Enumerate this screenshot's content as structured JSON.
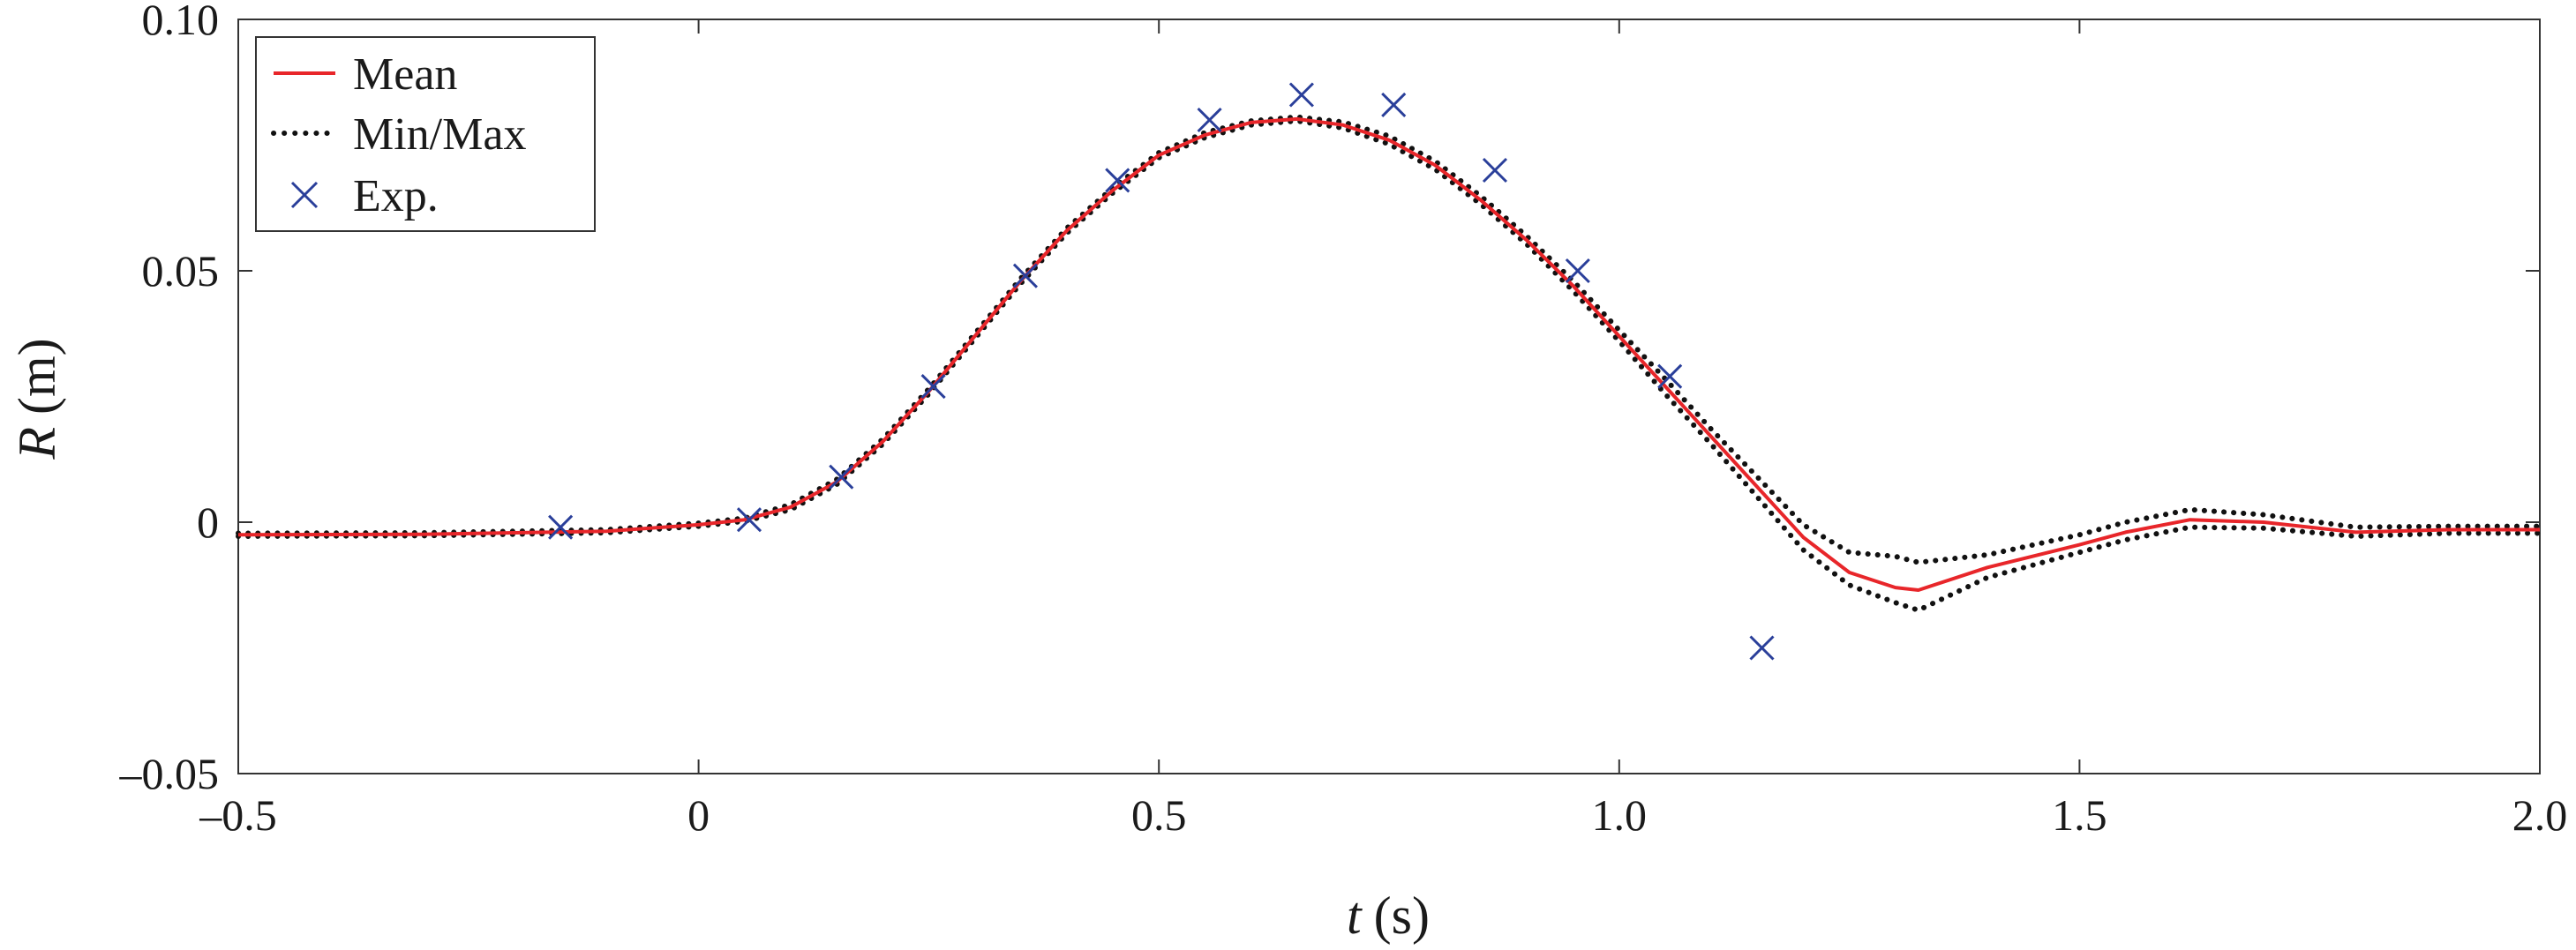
{
  "chart_data": {
    "type": "line",
    "title": "",
    "xlabel_var": "t",
    "xlabel_unit": "(s)",
    "ylabel_var": "R",
    "ylabel_unit": "(m)",
    "xlim": [
      -0.5,
      2.0
    ],
    "ylim": [
      -0.05,
      0.1
    ],
    "xticks": [
      -0.5,
      0,
      0.5,
      1.0,
      1.5,
      2.0
    ],
    "xtick_labels": [
      "–0.5",
      "0",
      "0.5",
      "1.0",
      "1.5",
      "2.0"
    ],
    "yticks": [
      -0.05,
      0,
      0.05,
      0.1
    ],
    "ytick_labels": [
      "–0.05",
      "0",
      "0.05",
      "0.10"
    ],
    "grid": false,
    "legend_position": "top-left",
    "series": [
      {
        "name": "Mean",
        "style": "solid",
        "color": "#e8262a",
        "points": [
          [
            -0.5,
            -0.0025
          ],
          [
            -0.3,
            -0.0024
          ],
          [
            -0.1,
            -0.0018
          ],
          [
            0.0,
            -0.0005
          ],
          [
            0.05,
            0.0005
          ],
          [
            0.1,
            0.003
          ],
          [
            0.15,
            0.008
          ],
          [
            0.2,
            0.016
          ],
          [
            0.25,
            0.026
          ],
          [
            0.3,
            0.037
          ],
          [
            0.35,
            0.048
          ],
          [
            0.4,
            0.058
          ],
          [
            0.45,
            0.066
          ],
          [
            0.5,
            0.073
          ],
          [
            0.55,
            0.077
          ],
          [
            0.6,
            0.0795
          ],
          [
            0.65,
            0.0802
          ],
          [
            0.7,
            0.079
          ],
          [
            0.75,
            0.076
          ],
          [
            0.8,
            0.071
          ],
          [
            0.85,
            0.064
          ],
          [
            0.9,
            0.056
          ],
          [
            0.95,
            0.047
          ],
          [
            1.0,
            0.037
          ],
          [
            1.05,
            0.027
          ],
          [
            1.1,
            0.017
          ],
          [
            1.15,
            0.007
          ],
          [
            1.2,
            -0.003
          ],
          [
            1.25,
            -0.01
          ],
          [
            1.3,
            -0.013
          ],
          [
            1.325,
            -0.0135
          ],
          [
            1.4,
            -0.009
          ],
          [
            1.5,
            -0.0045
          ],
          [
            1.55,
            -0.002
          ],
          [
            1.62,
            0.0005
          ],
          [
            1.7,
            0.0
          ],
          [
            1.8,
            -0.002
          ],
          [
            1.9,
            -0.0015
          ],
          [
            2.0,
            -0.0015
          ]
        ]
      },
      {
        "name": "Min/Max",
        "style": "dotted",
        "color": "#111111",
        "lower": [
          [
            -0.5,
            -0.0028
          ],
          [
            -0.3,
            -0.0027
          ],
          [
            -0.1,
            -0.0021
          ],
          [
            0.0,
            -0.0008
          ],
          [
            0.05,
            0.0002
          ],
          [
            0.1,
            0.0025
          ],
          [
            0.15,
            0.0075
          ],
          [
            0.2,
            0.0155
          ],
          [
            0.25,
            0.0255
          ],
          [
            0.3,
            0.0365
          ],
          [
            0.35,
            0.0475
          ],
          [
            0.4,
            0.0575
          ],
          [
            0.45,
            0.0655
          ],
          [
            0.5,
            0.0725
          ],
          [
            0.55,
            0.0765
          ],
          [
            0.6,
            0.079
          ],
          [
            0.65,
            0.0798
          ],
          [
            0.7,
            0.0784
          ],
          [
            0.75,
            0.0752
          ],
          [
            0.8,
            0.0702
          ],
          [
            0.85,
            0.0632
          ],
          [
            0.9,
            0.0552
          ],
          [
            0.95,
            0.046
          ],
          [
            1.0,
            0.036
          ],
          [
            1.05,
            0.0255
          ],
          [
            1.1,
            0.0155
          ],
          [
            1.15,
            0.005
          ],
          [
            1.2,
            -0.0055
          ],
          [
            1.25,
            -0.0125
          ],
          [
            1.3,
            -0.016
          ],
          [
            1.325,
            -0.0175
          ],
          [
            1.4,
            -0.011
          ],
          [
            1.5,
            -0.006
          ],
          [
            1.55,
            -0.0035
          ],
          [
            1.62,
            -0.001
          ],
          [
            1.7,
            -0.0012
          ],
          [
            1.8,
            -0.0028
          ],
          [
            1.9,
            -0.0022
          ],
          [
            2.0,
            -0.0022
          ]
        ],
        "upper": [
          [
            -0.5,
            -0.0022
          ],
          [
            -0.3,
            -0.0021
          ],
          [
            -0.1,
            -0.0015
          ],
          [
            0.0,
            -0.0002
          ],
          [
            0.05,
            0.0008
          ],
          [
            0.1,
            0.0035
          ],
          [
            0.15,
            0.0085
          ],
          [
            0.2,
            0.0165
          ],
          [
            0.25,
            0.0265
          ],
          [
            0.3,
            0.0375
          ],
          [
            0.35,
            0.0485
          ],
          [
            0.4,
            0.0585
          ],
          [
            0.45,
            0.0665
          ],
          [
            0.5,
            0.0735
          ],
          [
            0.55,
            0.0775
          ],
          [
            0.6,
            0.0798
          ],
          [
            0.65,
            0.0806
          ],
          [
            0.7,
            0.0796
          ],
          [
            0.75,
            0.0768
          ],
          [
            0.8,
            0.0718
          ],
          [
            0.85,
            0.0648
          ],
          [
            0.9,
            0.0568
          ],
          [
            0.95,
            0.048
          ],
          [
            1.0,
            0.0382
          ],
          [
            1.05,
            0.0285
          ],
          [
            1.1,
            0.0185
          ],
          [
            1.15,
            0.009
          ],
          [
            1.2,
            -0.0005
          ],
          [
            1.25,
            -0.006
          ],
          [
            1.3,
            -0.0068
          ],
          [
            1.325,
            -0.008
          ],
          [
            1.4,
            -0.0065
          ],
          [
            1.5,
            -0.0025
          ],
          [
            1.55,
            0.0
          ],
          [
            1.62,
            0.0025
          ],
          [
            1.7,
            0.0015
          ],
          [
            1.8,
            -0.001
          ],
          [
            1.9,
            -0.0008
          ],
          [
            2.0,
            -0.0008
          ]
        ]
      },
      {
        "name": "Exp.",
        "style": "marker-x",
        "color": "#2a3f9a",
        "points": [
          [
            -0.15,
            -0.001
          ],
          [
            0.055,
            0.0005
          ],
          [
            0.155,
            0.009
          ],
          [
            0.255,
            0.027
          ],
          [
            0.355,
            0.049
          ],
          [
            0.455,
            0.068
          ],
          [
            0.555,
            0.08
          ],
          [
            0.655,
            0.085
          ],
          [
            0.755,
            0.083
          ],
          [
            0.865,
            0.07
          ],
          [
            0.955,
            0.05
          ],
          [
            1.055,
            0.029
          ],
          [
            1.155,
            -0.025
          ]
        ]
      }
    ]
  }
}
